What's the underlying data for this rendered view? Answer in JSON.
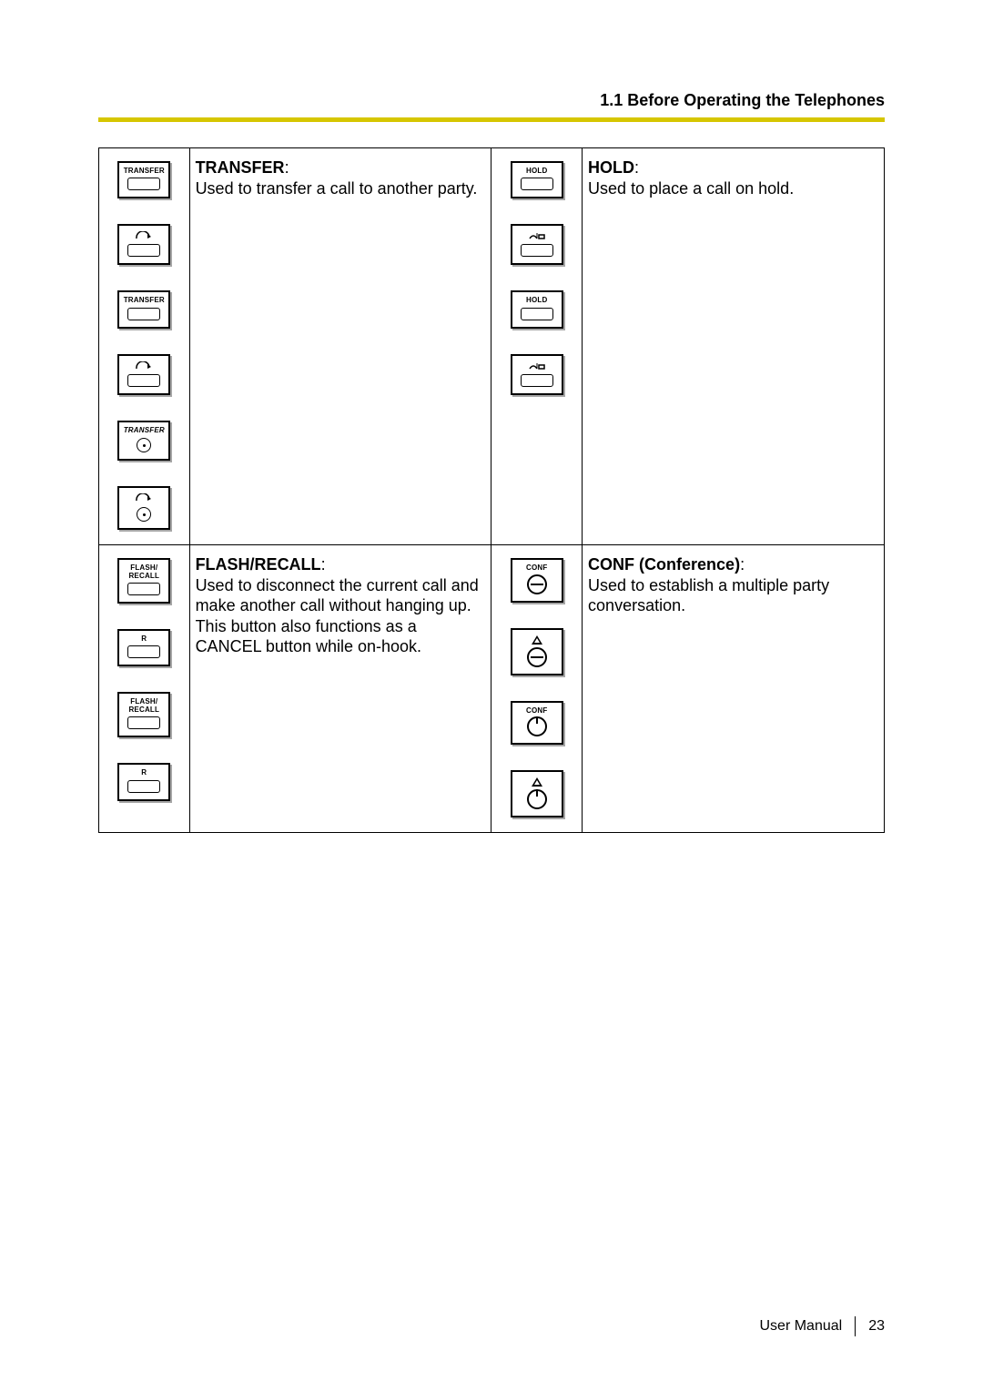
{
  "header": {
    "section": "1.1 Before Operating the Telephones"
  },
  "footer": {
    "doc": "User Manual",
    "page": "23"
  },
  "rule_color": "#d6c600",
  "cells": {
    "transfer": {
      "title": "TRANSFER",
      "body": "Used to transfer a call to another party.",
      "icons": [
        {
          "style": "box",
          "label": "TRANSFER",
          "shape": "key"
        },
        {
          "style": "box",
          "label": "",
          "symbol": "transfer",
          "shape": "key"
        },
        {
          "style": "box",
          "label": "TRANSFER",
          "shape": "key"
        },
        {
          "style": "box",
          "label": "",
          "symbol": "transfer",
          "shape": "key"
        },
        {
          "style": "box",
          "label": "TRANSFER",
          "label_italic": true,
          "shape": "circle-dot"
        },
        {
          "style": "box",
          "label": "",
          "symbol": "transfer",
          "shape": "circle-dot"
        }
      ]
    },
    "hold": {
      "title": "HOLD",
      "body": "Used to place a call on hold.",
      "icons": [
        {
          "style": "box",
          "label": "HOLD",
          "shape": "key"
        },
        {
          "style": "box",
          "label": "",
          "symbol": "hold",
          "shape": "key"
        },
        {
          "style": "box",
          "label": "HOLD",
          "shape": "key"
        },
        {
          "style": "box",
          "label": "",
          "symbol": "hold",
          "shape": "key"
        }
      ]
    },
    "flash": {
      "title": "FLASH/RECALL",
      "body": "Used to disconnect the current call and make another call without hanging up. This button also functions as a CANCEL button while on-hook.",
      "icons": [
        {
          "style": "box",
          "label": "FLASH/\nRECALL",
          "shape": "key"
        },
        {
          "style": "box",
          "label": "R",
          "shape": "key"
        },
        {
          "style": "box",
          "label": "FLASH/\nRECALL",
          "shape": "key"
        },
        {
          "style": "box",
          "label": "R",
          "shape": "key"
        }
      ]
    },
    "conf": {
      "title": "CONF (Conference)",
      "body": "Used to establish a multiple party conversation.",
      "icons": [
        {
          "style": "box",
          "label": "CONF",
          "shape": "conf-split"
        },
        {
          "style": "box",
          "label": "",
          "symbol": "triangle",
          "shape": "conf-split"
        },
        {
          "style": "box",
          "label": "CONF",
          "shape": "circle-notch"
        },
        {
          "style": "box",
          "label": "",
          "symbol": "triangle",
          "shape": "circle-notch"
        }
      ]
    }
  }
}
